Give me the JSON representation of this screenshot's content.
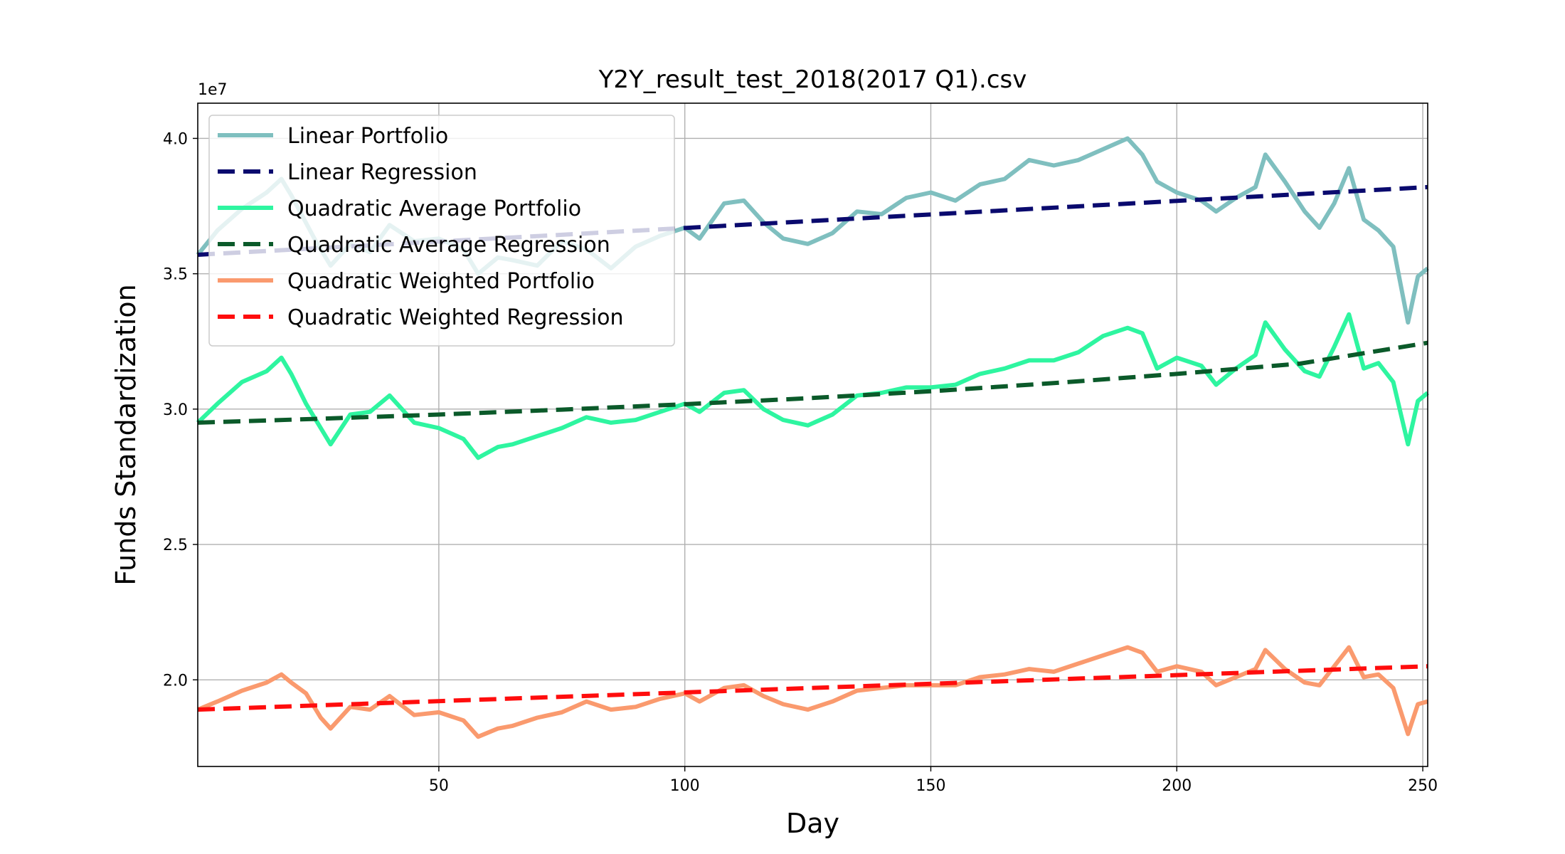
{
  "chart_data": {
    "type": "line",
    "title": "Y2Y_result_test_2018(2017 Q1).csv",
    "xlabel": "Day",
    "ylabel": "Funds Standardization",
    "y_offset_label": "1e7",
    "xlim": [
      1,
      251
    ],
    "ylim": [
      16800000,
      41300000
    ],
    "xticks": [
      50,
      100,
      150,
      200,
      250
    ],
    "xtick_labels": [
      "50",
      "100",
      "150",
      "200",
      "250"
    ],
    "yticks": [
      20000000,
      25000000,
      30000000,
      35000000,
      40000000
    ],
    "ytick_labels": [
      "2.0",
      "2.5",
      "3.0",
      "3.5",
      "4.0"
    ],
    "grid": true,
    "legend_position": "upper-left",
    "series": [
      {
        "name": "Linear Portfolio",
        "style": "solid",
        "color": "#7fbfbf",
        "x": [
          1,
          5,
          10,
          15,
          18,
          20,
          25,
          28,
          32,
          36,
          40,
          45,
          50,
          55,
          58,
          62,
          65,
          70,
          75,
          80,
          85,
          90,
          95,
          100,
          103,
          108,
          112,
          116,
          120,
          125,
          130,
          135,
          140,
          145,
          150,
          155,
          160,
          165,
          170,
          175,
          180,
          185,
          190,
          193,
          196,
          200,
          205,
          208,
          212,
          216,
          218,
          222,
          226,
          229,
          232,
          235,
          238,
          241,
          244,
          247,
          249,
          251
        ],
        "values": [
          35700000,
          36600000,
          37400000,
          38000000,
          38500000,
          37900000,
          36200000,
          35300000,
          36100000,
          35800000,
          36800000,
          36200000,
          36300000,
          35900000,
          35000000,
          35600000,
          35500000,
          35300000,
          36200000,
          35900000,
          35200000,
          36000000,
          36400000,
          36700000,
          36300000,
          37600000,
          37700000,
          36900000,
          36300000,
          36100000,
          36500000,
          37300000,
          37200000,
          37800000,
          38000000,
          37700000,
          38300000,
          38500000,
          39200000,
          39000000,
          39200000,
          39600000,
          40000000,
          39400000,
          38400000,
          38000000,
          37700000,
          37300000,
          37800000,
          38200000,
          39400000,
          38400000,
          37300000,
          36700000,
          37600000,
          38900000,
          37000000,
          36600000,
          36000000,
          33200000,
          34900000,
          35200000
        ]
      },
      {
        "name": "Linear Regression",
        "style": "dashed",
        "color": "#0a0a6e",
        "x": [
          1,
          251
        ],
        "values": [
          35700000,
          38200000
        ]
      },
      {
        "name": "Quadratic Average Portfolio",
        "style": "solid",
        "color": "#2ef5a0",
        "x": [
          1,
          5,
          10,
          15,
          18,
          20,
          23,
          26,
          28,
          32,
          36,
          40,
          45,
          50,
          55,
          58,
          62,
          65,
          70,
          75,
          80,
          85,
          90,
          95,
          100,
          103,
          108,
          112,
          116,
          120,
          125,
          130,
          135,
          140,
          145,
          150,
          155,
          160,
          165,
          170,
          175,
          180,
          185,
          190,
          193,
          196,
          200,
          205,
          208,
          212,
          216,
          218,
          222,
          226,
          229,
          232,
          235,
          238,
          241,
          244,
          247,
          249,
          251
        ],
        "values": [
          29500000,
          30200000,
          31000000,
          31400000,
          31900000,
          31300000,
          30200000,
          29300000,
          28700000,
          29800000,
          29900000,
          30500000,
          29500000,
          29300000,
          28900000,
          28200000,
          28600000,
          28700000,
          29000000,
          29300000,
          29700000,
          29500000,
          29600000,
          29900000,
          30200000,
          29900000,
          30600000,
          30700000,
          30000000,
          29600000,
          29400000,
          29800000,
          30500000,
          30600000,
          30800000,
          30800000,
          30900000,
          31300000,
          31500000,
          31800000,
          31800000,
          32100000,
          32700000,
          33000000,
          32800000,
          31500000,
          31900000,
          31600000,
          30900000,
          31500000,
          32000000,
          33200000,
          32200000,
          31400000,
          31200000,
          32300000,
          33500000,
          31500000,
          31700000,
          31000000,
          28700000,
          30300000,
          30600000
        ]
      },
      {
        "name": "Quadratic Average Regression",
        "style": "dashed",
        "color": "#0b5a2a",
        "x": [
          1,
          25,
          50,
          75,
          100,
          125,
          150,
          175,
          200,
          225,
          251
        ],
        "values": [
          29500000,
          29640000,
          29800000,
          29980000,
          30180000,
          30400000,
          30660000,
          30960000,
          31300000,
          31680000,
          32450000
        ]
      },
      {
        "name": "Quadratic Weighted Portfolio",
        "style": "solid",
        "color": "#fa9a6e",
        "x": [
          1,
          5,
          10,
          15,
          18,
          20,
          23,
          26,
          28,
          32,
          36,
          40,
          45,
          50,
          55,
          58,
          62,
          65,
          70,
          75,
          80,
          85,
          90,
          95,
          100,
          103,
          108,
          112,
          116,
          120,
          125,
          130,
          135,
          140,
          145,
          150,
          155,
          160,
          165,
          170,
          175,
          180,
          185,
          190,
          193,
          196,
          200,
          205,
          208,
          212,
          216,
          218,
          222,
          226,
          229,
          232,
          235,
          238,
          241,
          244,
          247,
          249,
          251
        ],
        "values": [
          18900000,
          19200000,
          19600000,
          19900000,
          20200000,
          19900000,
          19500000,
          18600000,
          18200000,
          19000000,
          18900000,
          19400000,
          18700000,
          18800000,
          18500000,
          17900000,
          18200000,
          18300000,
          18600000,
          18800000,
          19200000,
          18900000,
          19000000,
          19300000,
          19500000,
          19200000,
          19700000,
          19800000,
          19400000,
          19100000,
          18900000,
          19200000,
          19600000,
          19700000,
          19800000,
          19800000,
          19800000,
          20100000,
          20200000,
          20400000,
          20300000,
          20600000,
          20900000,
          21200000,
          21000000,
          20300000,
          20500000,
          20300000,
          19800000,
          20100000,
          20400000,
          21100000,
          20400000,
          19900000,
          19800000,
          20500000,
          21200000,
          20100000,
          20200000,
          19700000,
          18000000,
          19100000,
          19200000
        ]
      },
      {
        "name": "Quadratic Weighted Regression",
        "style": "dashed",
        "color": "#ff0d0d",
        "x": [
          1,
          251
        ],
        "values": [
          18900000,
          20500000
        ]
      }
    ]
  }
}
